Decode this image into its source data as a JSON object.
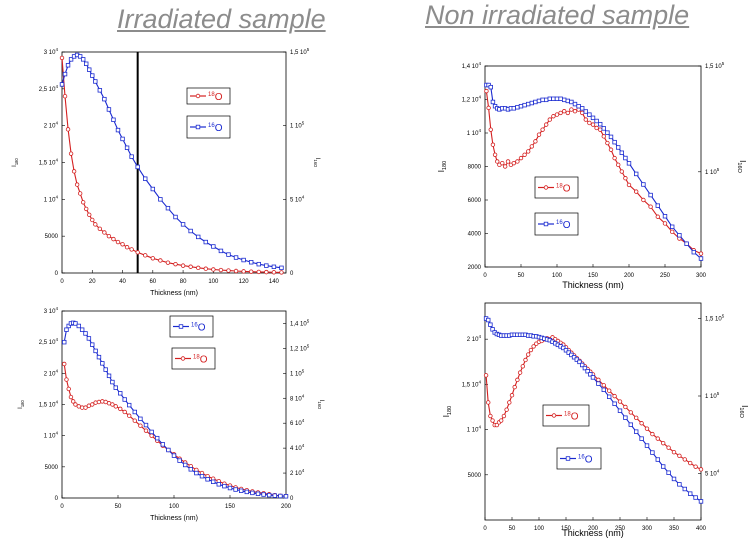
{
  "titles": {
    "left": "Irradiated sample",
    "right": "Non irradiated sample"
  },
  "colors": {
    "red": "#d42020",
    "blue": "#1a2ad0",
    "title": "#8c8c8c"
  },
  "chart_data": [
    {
      "id": "tl",
      "type": "scatter",
      "xlabel": "Thickness (nm)",
      "ylabel": "I180",
      "y2label": "I16O",
      "xlim": [
        0,
        148
      ],
      "xticks": [
        "0",
        "20",
        "40",
        "60",
        "80",
        "100",
        "120",
        "140"
      ],
      "ylim": [
        0,
        30000
      ],
      "yticks": [
        "0",
        "5000",
        "1 10⁴",
        "1,5 10⁴",
        "2 10⁴",
        "2,5 10⁴",
        "3 10⁴"
      ],
      "y2lim": [
        0,
        150000
      ],
      "y2ticks": [
        "0",
        "5 10⁴",
        "1 10⁵",
        "1,5 10⁵"
      ],
      "vline": 50,
      "legend": [
        {
          "label": "18O",
          "color": "#d42020"
        },
        {
          "label": "16O",
          "color": "#1a2ad0"
        }
      ],
      "series": [
        {
          "name": "18O",
          "axis": "y",
          "color": "#d42020",
          "marker": "circle",
          "x": [
            0,
            2,
            4,
            6,
            8,
            10,
            12,
            14,
            16,
            18,
            20,
            22,
            25,
            28,
            31,
            34,
            37,
            40,
            43,
            46,
            50,
            55,
            60,
            65,
            70,
            75,
            80,
            85,
            90,
            95,
            100,
            105,
            110,
            115,
            120,
            125,
            130,
            135,
            140,
            145
          ],
          "y": [
            29200,
            24000,
            19500,
            16200,
            13800,
            12000,
            10800,
            9600,
            8700,
            7900,
            7200,
            6600,
            6000,
            5500,
            5000,
            4600,
            4200,
            3900,
            3500,
            3200,
            2800,
            2400,
            2000,
            1700,
            1400,
            1200,
            1000,
            850,
            700,
            580,
            480,
            400,
            330,
            270,
            220,
            180,
            150,
            120,
            100,
            80
          ]
        },
        {
          "name": "16O",
          "axis": "y2",
          "color": "#1a2ad0",
          "marker": "square",
          "x": [
            0,
            2,
            4,
            6,
            8,
            10,
            12,
            14,
            16,
            18,
            20,
            22,
            25,
            28,
            31,
            34,
            37,
            40,
            43,
            46,
            50,
            55,
            60,
            65,
            70,
            75,
            80,
            85,
            90,
            95,
            100,
            105,
            110,
            115,
            120,
            125,
            130,
            135,
            140,
            145
          ],
          "y": [
            128000,
            135000,
            141000,
            145000,
            147000,
            148000,
            147000,
            145000,
            142000,
            138000,
            134000,
            130000,
            124000,
            118000,
            111000,
            104000,
            97000,
            91000,
            85000,
            79000,
            72000,
            64000,
            57000,
            50000,
            44000,
            38000,
            33000,
            28500,
            24500,
            21000,
            18000,
            15000,
            12500,
            10500,
            8800,
            7300,
            6000,
            5000,
            4200,
            3500
          ]
        }
      ]
    },
    {
      "id": "bl",
      "type": "scatter",
      "xlabel": "Thickness (nm)",
      "ylabel": "I180",
      "y2label": "I16O",
      "xlim": [
        0,
        200
      ],
      "xticks": [
        "0",
        "50",
        "100",
        "150",
        "200"
      ],
      "ylim": [
        0,
        30000
      ],
      "yticks": [
        "0",
        "5000",
        "1 10⁴",
        "1,5 10⁴",
        "2 10⁴",
        "2,5 10⁴",
        "3 10⁴"
      ],
      "y2lim": [
        0,
        150000
      ],
      "y2ticks": [
        "0",
        "2 10⁴",
        "4 10⁴",
        "6 10⁴",
        "8 10⁴",
        "1 10⁵",
        "1,2 10⁵",
        "1,4 10⁵"
      ],
      "legend": [
        {
          "label": "16O",
          "color": "#1a2ad0"
        },
        {
          "label": "18O",
          "color": "#d42020"
        }
      ],
      "series": [
        {
          "name": "18O",
          "axis": "y",
          "color": "#d42020",
          "marker": "circle",
          "x": [
            2,
            4,
            6,
            8,
            10,
            12,
            15,
            18,
            21,
            24,
            27,
            30,
            33,
            36,
            39,
            42,
            45,
            48,
            52,
            56,
            60,
            65,
            70,
            75,
            80,
            85,
            90,
            95,
            100,
            105,
            110,
            115,
            120,
            125,
            130,
            135,
            140,
            145,
            150,
            155,
            160,
            165,
            170,
            175,
            180,
            185,
            190,
            195,
            200
          ],
          "y": [
            21500,
            19000,
            17500,
            16200,
            15500,
            15000,
            14700,
            14500,
            14500,
            14800,
            15000,
            15300,
            15400,
            15500,
            15400,
            15200,
            15000,
            14700,
            14300,
            13800,
            13200,
            12400,
            11600,
            10800,
            10000,
            9200,
            8400,
            7700,
            7000,
            6300,
            5700,
            5100,
            4500,
            4000,
            3500,
            3100,
            2700,
            2300,
            2000,
            1700,
            1450,
            1250,
            1050,
            900,
            750,
            600,
            450,
            350,
            300
          ]
        },
        {
          "name": "16O",
          "axis": "y2",
          "color": "#1a2ad0",
          "marker": "square",
          "x": [
            2,
            4,
            6,
            8,
            10,
            12,
            15,
            18,
            21,
            24,
            27,
            30,
            33,
            36,
            39,
            42,
            45,
            48,
            52,
            56,
            60,
            65,
            70,
            75,
            80,
            85,
            90,
            95,
            100,
            105,
            110,
            115,
            120,
            125,
            130,
            135,
            140,
            145,
            150,
            155,
            160,
            165,
            170,
            175,
            180,
            185,
            190,
            195,
            200
          ],
          "y": [
            125000,
            135000,
            138000,
            140000,
            140500,
            140000,
            138000,
            135000,
            132000,
            128000,
            123000,
            118000,
            113000,
            108000,
            103000,
            98000,
            93000,
            88500,
            84000,
            79000,
            74500,
            69000,
            63500,
            58500,
            53000,
            48000,
            43000,
            38500,
            34000,
            30000,
            26500,
            23000,
            20000,
            17500,
            15000,
            13000,
            11000,
            9500,
            8000,
            6800,
            5800,
            4900,
            4100,
            3400,
            2800,
            2300,
            1900,
            1600,
            1400
          ]
        }
      ]
    },
    {
      "id": "tr",
      "type": "scatter",
      "xlabel": "Thickness (nm)",
      "ylabel": "I180",
      "y2label": "I16O",
      "xlim": [
        0,
        300
      ],
      "xticks": [
        "0",
        "50",
        "100",
        "150",
        "200",
        "250",
        "300"
      ],
      "ylim": [
        2000,
        14000
      ],
      "yticks": [
        "2000",
        "4000",
        "6000",
        "8000",
        "1 10⁴",
        "1,2 10⁴",
        "1,4 10⁴"
      ],
      "y2lim": [
        55000,
        150000
      ],
      "y2ticks": [
        "1 10⁵",
        "1,5 10⁵"
      ],
      "legend": [
        {
          "label": "18O",
          "color": "#d42020"
        },
        {
          "label": "16O",
          "color": "#1a2ad0"
        }
      ],
      "series": [
        {
          "name": "18O",
          "axis": "y",
          "color": "#d42020",
          "marker": "circle",
          "x": [
            2,
            5,
            8,
            11,
            14,
            17,
            20,
            24,
            28,
            32,
            36,
            40,
            45,
            50,
            55,
            60,
            65,
            70,
            75,
            80,
            85,
            90,
            95,
            100,
            105,
            110,
            115,
            120,
            125,
            130,
            135,
            140,
            145,
            150,
            155,
            160,
            165,
            170,
            175,
            180,
            185,
            190,
            195,
            200,
            210,
            220,
            230,
            240,
            250,
            260,
            270,
            280,
            290,
            300
          ],
          "y": [
            12500,
            11500,
            10200,
            9300,
            8700,
            8300,
            8100,
            8200,
            8000,
            8300,
            8100,
            8200,
            8300,
            8500,
            8700,
            8900,
            9200,
            9500,
            9900,
            10200,
            10500,
            10800,
            11000,
            11100,
            11200,
            11300,
            11200,
            11400,
            11300,
            11400,
            11200,
            10800,
            10600,
            10500,
            10300,
            10200,
            9800,
            9400,
            9000,
            8500,
            8100,
            7700,
            7300,
            6900,
            6500,
            6000,
            5600,
            5000,
            4600,
            4100,
            3700,
            3400,
            3000,
            2800
          ]
        },
        {
          "name": "16O",
          "axis": "y2",
          "color": "#1a2ad0",
          "marker": "square",
          "x": [
            2,
            5,
            8,
            11,
            14,
            17,
            20,
            24,
            28,
            32,
            36,
            40,
            45,
            50,
            55,
            60,
            65,
            70,
            75,
            80,
            85,
            90,
            95,
            100,
            105,
            110,
            115,
            120,
            125,
            130,
            135,
            140,
            145,
            150,
            155,
            160,
            165,
            170,
            175,
            180,
            185,
            190,
            195,
            200,
            210,
            220,
            230,
            240,
            250,
            260,
            270,
            280,
            290,
            300
          ],
          "y": [
            141000,
            141000,
            140000,
            133000,
            131000,
            130000,
            129500,
            130000,
            130000,
            129500,
            130000,
            130000,
            130500,
            131000,
            131500,
            132000,
            132500,
            133000,
            133500,
            134000,
            134000,
            134500,
            134500,
            134500,
            134500,
            134000,
            133500,
            133000,
            132000,
            131000,
            130000,
            128500,
            127000,
            125500,
            124000,
            122500,
            120500,
            118500,
            116500,
            114000,
            111500,
            109000,
            106500,
            104000,
            99000,
            94000,
            89000,
            84000,
            79000,
            74000,
            70000,
            66000,
            62000,
            59000
          ]
        }
      ]
    },
    {
      "id": "br",
      "type": "scatter",
      "xlabel": "Thickness (nm)",
      "ylabel": "I180",
      "y2label": "I16O",
      "xlim": [
        0,
        400
      ],
      "xticks": [
        "0",
        "50",
        "100",
        "150",
        "200",
        "250",
        "300",
        "350",
        "400"
      ],
      "ylim": [
        0,
        24000
      ],
      "yticks": [
        "5000",
        "1 10⁴",
        "1,5 10⁴",
        "2 10⁴"
      ],
      "y2lim": [
        20000,
        160000
      ],
      "y2ticks": [
        "5 10⁴",
        "1 10⁵",
        "1,5 10⁵"
      ],
      "legend": [
        {
          "label": "18O",
          "color": "#d42020"
        },
        {
          "label": "16O",
          "color": "#1a2ad0"
        }
      ],
      "series": [
        {
          "name": "18O",
          "axis": "y",
          "color": "#d42020",
          "marker": "circle",
          "x": [
            2,
            6,
            10,
            14,
            18,
            22,
            26,
            30,
            35,
            40,
            45,
            50,
            55,
            60,
            65,
            70,
            75,
            80,
            85,
            90,
            95,
            100,
            105,
            110,
            115,
            120,
            125,
            130,
            135,
            140,
            145,
            150,
            155,
            160,
            165,
            170,
            175,
            180,
            185,
            190,
            195,
            200,
            210,
            220,
            230,
            240,
            250,
            260,
            270,
            280,
            290,
            300,
            310,
            320,
            330,
            340,
            350,
            360,
            370,
            380,
            390,
            400
          ],
          "y": [
            16000,
            13000,
            11500,
            11000,
            10500,
            10500,
            10800,
            11000,
            11500,
            12200,
            13000,
            13800,
            14700,
            15500,
            16300,
            17000,
            17700,
            18300,
            18800,
            19200,
            19500,
            19700,
            19800,
            20000,
            20100,
            20000,
            20200,
            20000,
            19800,
            19600,
            19400,
            19100,
            18800,
            18500,
            18200,
            17900,
            17600,
            17300,
            17000,
            16700,
            16400,
            16100,
            15500,
            14900,
            14300,
            13700,
            13100,
            12500,
            11900,
            11300,
            10700,
            10100,
            9500,
            9000,
            8500,
            8000,
            7500,
            7100,
            6700,
            6300,
            5900,
            5600
          ]
        },
        {
          "name": "16O",
          "axis": "y2",
          "color": "#1a2ad0",
          "marker": "square",
          "x": [
            2,
            6,
            10,
            14,
            18,
            22,
            26,
            30,
            35,
            40,
            45,
            50,
            55,
            60,
            65,
            70,
            75,
            80,
            85,
            90,
            95,
            100,
            105,
            110,
            115,
            120,
            125,
            130,
            135,
            140,
            145,
            150,
            155,
            160,
            165,
            170,
            175,
            180,
            185,
            190,
            195,
            200,
            210,
            220,
            230,
            240,
            250,
            260,
            270,
            280,
            290,
            300,
            310,
            320,
            330,
            340,
            350,
            360,
            370,
            380,
            390,
            400
          ],
          "y": [
            150000,
            149000,
            146000,
            143000,
            141000,
            140000,
            139500,
            139000,
            139000,
            139000,
            139000,
            139500,
            139500,
            139500,
            139500,
            139500,
            139500,
            139000,
            139000,
            138500,
            138500,
            138000,
            137500,
            137000,
            136500,
            136000,
            135000,
            134000,
            133000,
            132000,
            131000,
            129500,
            128000,
            126500,
            125000,
            123500,
            122000,
            120000,
            118000,
            116000,
            114000,
            112000,
            108000,
            104000,
            99500,
            95000,
            90500,
            86000,
            81500,
            77000,
            72500,
            68000,
            63500,
            59000,
            54500,
            50500,
            46500,
            43000,
            40000,
            37000,
            34500,
            32000
          ]
        }
      ]
    }
  ]
}
